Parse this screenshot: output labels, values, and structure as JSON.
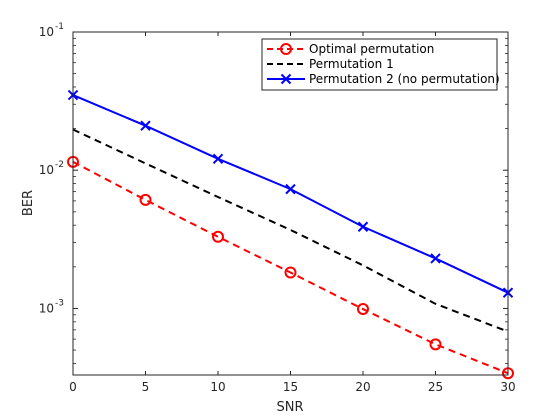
{
  "chart_data": {
    "type": "line",
    "xlabel": "SNR",
    "ylabel": "BER",
    "xlim": [
      0,
      30
    ],
    "ylim": [
      0.00033,
      0.1
    ],
    "y_scale": "log",
    "x_ticks": [
      0,
      5,
      10,
      15,
      20,
      25,
      30
    ],
    "y_ticks": [
      {
        "value": 0.1,
        "base": "10",
        "exp": "-1"
      },
      {
        "value": 0.01,
        "base": "10",
        "exp": "-2"
      },
      {
        "value": 0.001,
        "base": "10",
        "exp": "-3"
      }
    ],
    "grid": false,
    "legend_position": "top-right",
    "x": [
      0,
      5,
      10,
      15,
      20,
      25,
      30
    ],
    "series": [
      {
        "name": "Optimal permutation",
        "color": "#ff0000",
        "dash": "dashed",
        "marker": "circle",
        "values": [
          0.0115,
          0.0061,
          0.0033,
          0.00182,
          0.00099,
          0.00055,
          0.00034
        ]
      },
      {
        "name": "Permutation 1",
        "color": "#000000",
        "dash": "dashed",
        "marker": "none",
        "values": [
          0.0197,
          0.0112,
          0.0064,
          0.0037,
          0.00205,
          0.00108,
          0.00068
        ]
      },
      {
        "name": "Permutation 2 (no permutation)",
        "color": "#0000ff",
        "dash": "solid",
        "marker": "x",
        "values": [
          0.035,
          0.021,
          0.0121,
          0.0073,
          0.0039,
          0.0023,
          0.0013
        ]
      }
    ]
  }
}
